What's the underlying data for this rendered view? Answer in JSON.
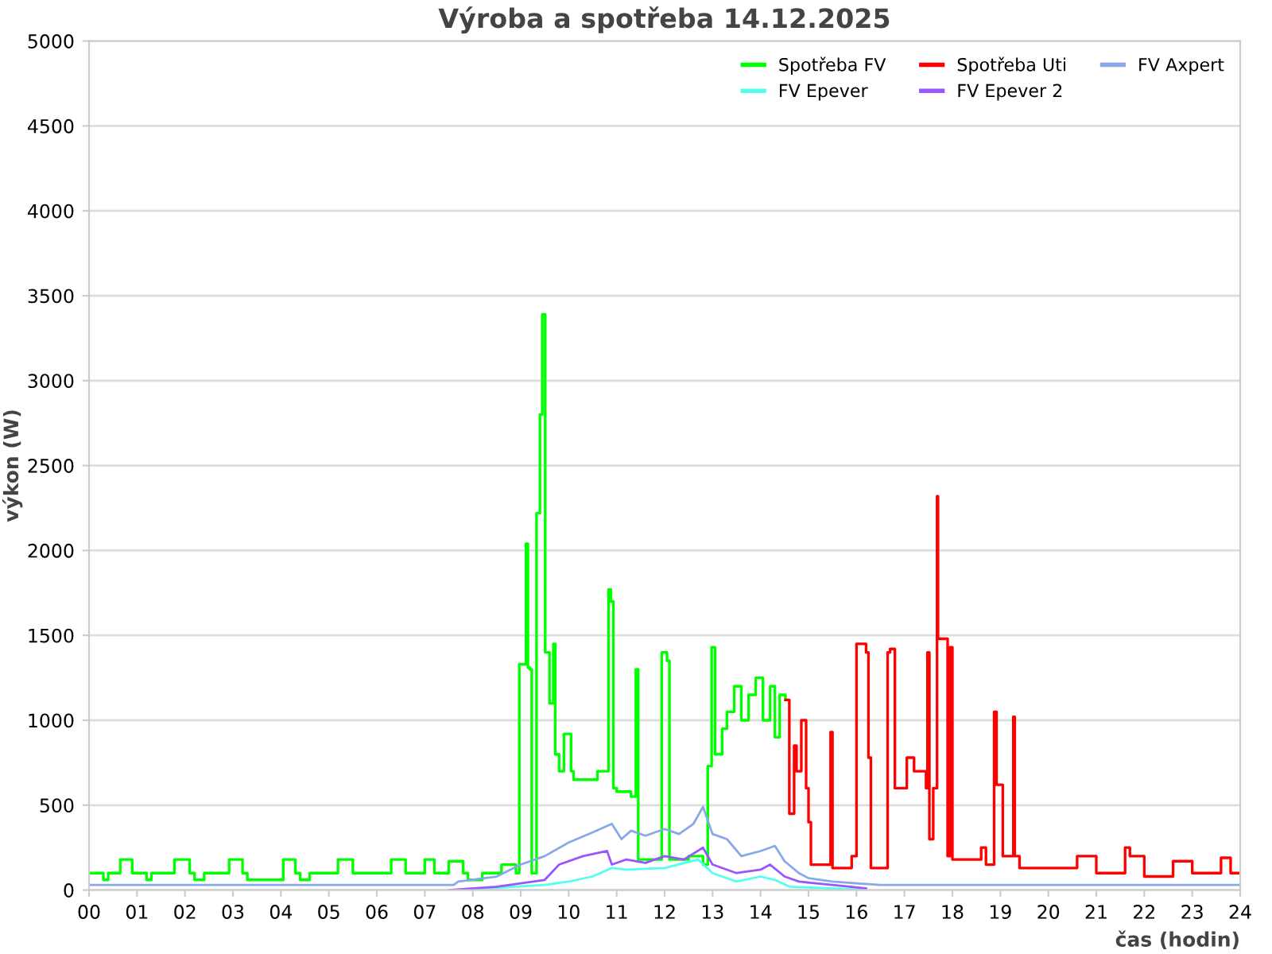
{
  "chart_data": {
    "type": "line",
    "title": "Výroba a spotřeba 14.12.2025",
    "xlabel": "čas (hodin)",
    "ylabel": "výkon (W)",
    "xlim": [
      0,
      24
    ],
    "ylim": [
      0,
      5000
    ],
    "yticks": [
      0,
      500,
      1000,
      1500,
      2000,
      2500,
      3000,
      3500,
      4000,
      4500,
      5000
    ],
    "xticks": [
      {
        "value": 0,
        "label": "00"
      },
      {
        "value": 1,
        "label": "01"
      },
      {
        "value": 2,
        "label": "02"
      },
      {
        "value": 3,
        "label": "03"
      },
      {
        "value": 4,
        "label": "04"
      },
      {
        "value": 5,
        "label": "05"
      },
      {
        "value": 6,
        "label": "06"
      },
      {
        "value": 7,
        "label": "07"
      },
      {
        "value": 8,
        "label": "08"
      },
      {
        "value": 9,
        "label": "09"
      },
      {
        "value": 10,
        "label": "10"
      },
      {
        "value": 11,
        "label": "11"
      },
      {
        "value": 12,
        "label": "12"
      },
      {
        "value": 13,
        "label": "13"
      },
      {
        "value": 14,
        "label": "14"
      },
      {
        "value": 15,
        "label": "15"
      },
      {
        "value": 16,
        "label": "16"
      },
      {
        "value": 17,
        "label": "17"
      },
      {
        "value": 18,
        "label": "18"
      },
      {
        "value": 19,
        "label": "19"
      },
      {
        "value": 20,
        "label": "20"
      },
      {
        "value": 21,
        "label": "21"
      },
      {
        "value": 22,
        "label": "22"
      },
      {
        "value": 23,
        "label": "23"
      },
      {
        "value": 24,
        "label": "24"
      }
    ],
    "grid": "y",
    "legend": "top right",
    "series": [
      {
        "name": "Spotřeba FV",
        "color": "#00ff00",
        "type": "step",
        "x": [
          0,
          0.2,
          0.3,
          0.4,
          0.65,
          0.9,
          1.1,
          1.2,
          1.3,
          1.5,
          1.78,
          2.1,
          2.2,
          2.4,
          2.5,
          2.92,
          3.2,
          3.3,
          4.05,
          4.3,
          4.4,
          4.6,
          5.19,
          5.5,
          5.6,
          6.3,
          6.6,
          6.7,
          7.0,
          7.2,
          7.5,
          7.8,
          7.9,
          8.2,
          8.6,
          8.9,
          8.97,
          9.11,
          9.15,
          9.19,
          9.23,
          9.33,
          9.4,
          9.45,
          9.51,
          9.6,
          9.68,
          9.72,
          9.8,
          9.9,
          10.05,
          10.1,
          10.3,
          10.6,
          10.83,
          10.88,
          10.93,
          11.0,
          11.3,
          11.4,
          11.45,
          11.9,
          11.94,
          12.05,
          12.1,
          12.5,
          12.8,
          12.9,
          12.98,
          13.05,
          13.2,
          13.3,
          13.45,
          13.6,
          13.75,
          13.9,
          14.05,
          14.2,
          14.3,
          14.4,
          14.52
        ],
        "values": [
          100,
          100,
          60,
          100,
          180,
          100,
          100,
          60,
          100,
          100,
          180,
          100,
          60,
          100,
          100,
          180,
          100,
          60,
          180,
          100,
          60,
          100,
          180,
          100,
          100,
          180,
          100,
          100,
          180,
          100,
          170,
          100,
          60,
          100,
          150,
          100,
          1330,
          2040,
          1310,
          1300,
          100,
          2220,
          2800,
          3390,
          1400,
          1100,
          1450,
          800,
          700,
          920,
          700,
          650,
          650,
          700,
          1770,
          1700,
          600,
          580,
          550,
          1300,
          180,
          180,
          1400,
          1350,
          180,
          200,
          150,
          730,
          1430,
          800,
          950,
          1050,
          1200,
          1000,
          1150,
          1250,
          1000,
          1200,
          900,
          1150,
          1120
        ]
      },
      {
        "name": "Spotřeba Uti",
        "color": "#ff0000",
        "type": "step",
        "x": [
          14.52,
          14.6,
          14.7,
          14.75,
          14.85,
          14.95,
          15.0,
          15.05,
          15.46,
          15.5,
          15.9,
          16.0,
          16.2,
          16.25,
          16.3,
          16.65,
          16.7,
          16.8,
          17.05,
          17.2,
          17.45,
          17.48,
          17.52,
          17.6,
          17.68,
          17.7,
          17.85,
          17.9,
          17.95,
          18.0,
          18.5,
          18.6,
          18.7,
          18.87,
          18.92,
          19.05,
          19.27,
          19.3,
          19.4,
          20.5,
          20.6,
          21.0,
          21.4,
          21.6,
          21.7,
          22.0,
          22.5,
          22.6,
          23.0,
          23.5,
          23.6,
          23.8,
          24
        ],
        "values": [
          1120,
          450,
          850,
          700,
          1000,
          600,
          400,
          150,
          930,
          130,
          200,
          1450,
          1400,
          780,
          130,
          1400,
          1420,
          600,
          780,
          700,
          600,
          1400,
          300,
          600,
          2320,
          1480,
          1480,
          200,
          1430,
          180,
          180,
          250,
          150,
          1050,
          620,
          200,
          1020,
          200,
          130,
          130,
          200,
          100,
          100,
          250,
          200,
          80,
          80,
          170,
          100,
          100,
          190,
          100,
          100
        ]
      },
      {
        "name": "FV Axpert",
        "color": "#88a8e8",
        "x": [
          0,
          7.6,
          7.7,
          8.5,
          9.0,
          9.5,
          10.0,
          10.5,
          10.9,
          11.1,
          11.3,
          11.6,
          12.0,
          12.3,
          12.6,
          12.8,
          13.0,
          13.3,
          13.6,
          14.0,
          14.3,
          14.5,
          14.8,
          15.0,
          15.5,
          16.0,
          16.5,
          24
        ],
        "values": [
          30,
          30,
          50,
          80,
          150,
          200,
          280,
          340,
          390,
          300,
          350,
          320,
          360,
          330,
          390,
          490,
          330,
          300,
          200,
          230,
          260,
          170,
          100,
          70,
          50,
          40,
          30,
          30
        ]
      },
      {
        "name": "FV Epever",
        "color": "#55ffee",
        "x": [
          7.7,
          9.5,
          10.0,
          10.5,
          10.9,
          11.2,
          12.0,
          12.7,
          13.0,
          13.5,
          14.0,
          14.3,
          14.6,
          15.5,
          16.2
        ],
        "values": [
          0,
          30,
          50,
          80,
          130,
          120,
          130,
          180,
          100,
          50,
          80,
          60,
          20,
          10,
          0
        ]
      },
      {
        "name": "FV Epever 2",
        "color": "#9955ff",
        "x": [
          7.5,
          8.5,
          9.0,
          9.5,
          9.8,
          10.3,
          10.8,
          10.9,
          11.2,
          11.6,
          12.0,
          12.4,
          12.8,
          13.0,
          13.5,
          14.0,
          14.2,
          14.5,
          14.8,
          15.5,
          16.2
        ],
        "values": [
          0,
          20,
          40,
          60,
          150,
          200,
          230,
          150,
          180,
          160,
          200,
          180,
          250,
          150,
          100,
          120,
          150,
          80,
          50,
          30,
          10
        ]
      }
    ]
  }
}
